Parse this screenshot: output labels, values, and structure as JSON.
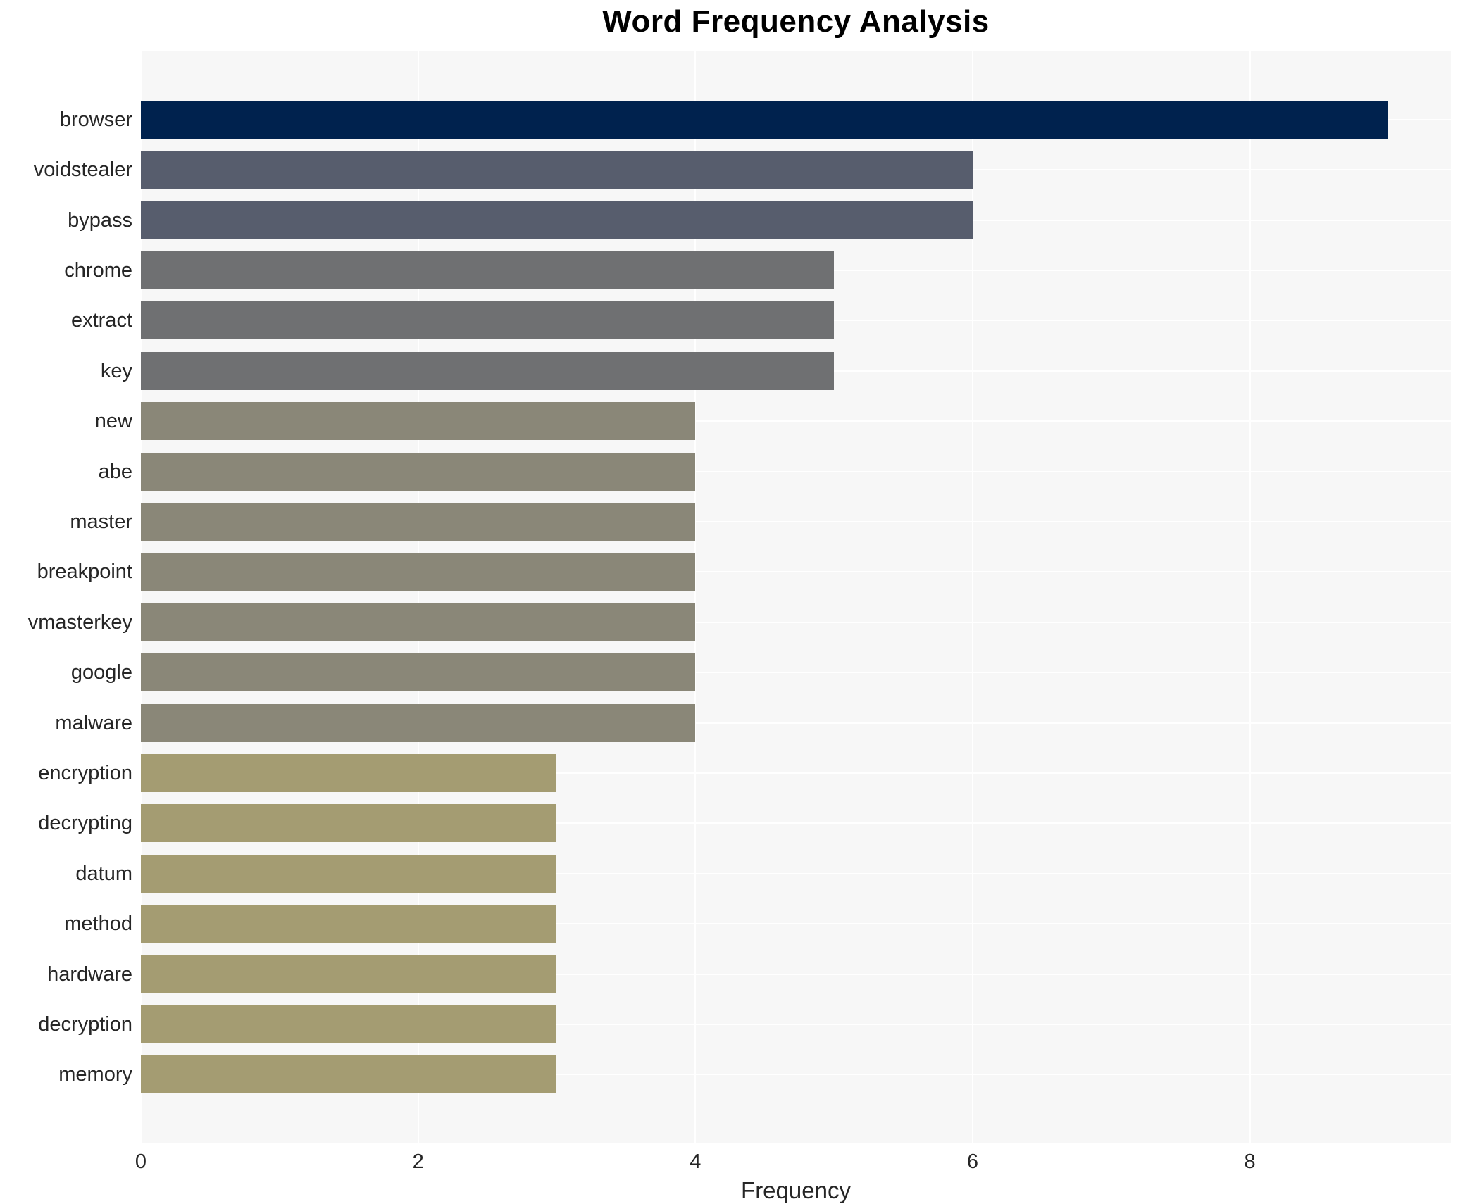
{
  "chart": {
    "title": "Word Frequency Analysis",
    "xlabel": "Frequency"
  },
  "chart_data": {
    "type": "bar",
    "orientation": "horizontal",
    "title": "Word Frequency Analysis",
    "xlabel": "Frequency",
    "ylabel": "",
    "categories": [
      "browser",
      "voidstealer",
      "bypass",
      "chrome",
      "extract",
      "key",
      "new",
      "abe",
      "master",
      "breakpoint",
      "vmasterkey",
      "google",
      "malware",
      "encryption",
      "decrypting",
      "datum",
      "method",
      "hardware",
      "decryption",
      "memory"
    ],
    "values": [
      9,
      6,
      6,
      5,
      5,
      5,
      4,
      4,
      4,
      4,
      4,
      4,
      4,
      3,
      3,
      3,
      3,
      3,
      3,
      3
    ],
    "bar_colors": [
      "#00224e",
      "#575d6d",
      "#575d6d",
      "#6f7072",
      "#6f7072",
      "#6f7072",
      "#8a8778",
      "#8a8778",
      "#8a8778",
      "#8a8778",
      "#8a8778",
      "#8a8778",
      "#8a8778",
      "#a49c72",
      "#a49c72",
      "#a49c72",
      "#a49c72",
      "#a49c72",
      "#a49c72",
      "#a49c72"
    ],
    "xticks": [
      0,
      2,
      4,
      6,
      8
    ],
    "xlim": [
      0,
      9.45
    ],
    "grid": true,
    "legend": false,
    "plot_background": "#f7f7f7",
    "grid_color": "#ffffff",
    "text_color": "#262626"
  }
}
